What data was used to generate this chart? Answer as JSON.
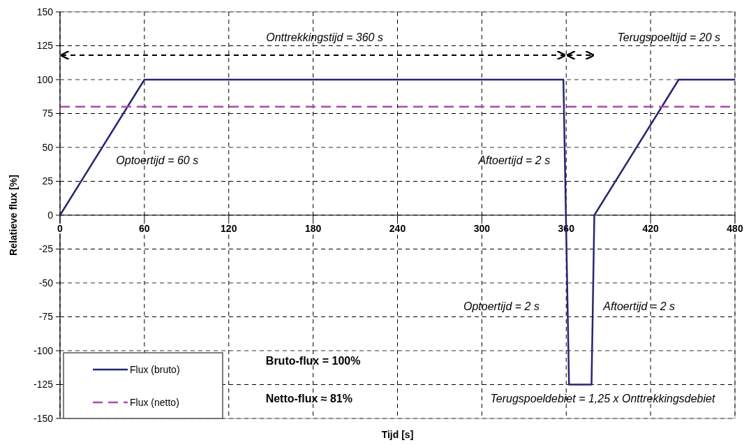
{
  "chart_data": {
    "type": "line",
    "xlabel": "Tijd [s]",
    "ylabel": "Relatieve flux [%]",
    "xlim": [
      0,
      480
    ],
    "xticks": [
      0,
      60,
      120,
      180,
      240,
      300,
      360,
      420,
      480
    ],
    "ylim": [
      -150,
      150
    ],
    "yticks": [
      -150,
      -125,
      -100,
      -75,
      -50,
      -25,
      0,
      25,
      50,
      75,
      100,
      125,
      150
    ],
    "grid": true,
    "legend": "bottom left",
    "series": [
      {
        "name": "Flux (bruto)",
        "color": "#262673",
        "line_style": "solid",
        "x": [
          0,
          60,
          358,
          362,
          378,
          380,
          440,
          480
        ],
        "values": [
          0,
          100,
          100,
          -125,
          -125,
          0,
          100,
          100
        ]
      },
      {
        "name": "Flux (netto)",
        "color": "#b04aa8",
        "line_style": "dashed",
        "x": [
          0,
          480
        ],
        "values": [
          80,
          80
        ]
      }
    ],
    "annotations": [
      "Onttrekkingstijd = 360 s",
      "Terugspoeltijd = 20 s",
      "Optoertijd = 60 s",
      "Aftoertijd = 2 s",
      "Optoertijd = 2 s",
      "Aftoertijd = 2 s",
      "Bruto-flux = 100%",
      "Netto-flux ≈ 81%",
      "Terugspoeldebiet = 1,25 x Onttrekkingsdebiet"
    ]
  }
}
